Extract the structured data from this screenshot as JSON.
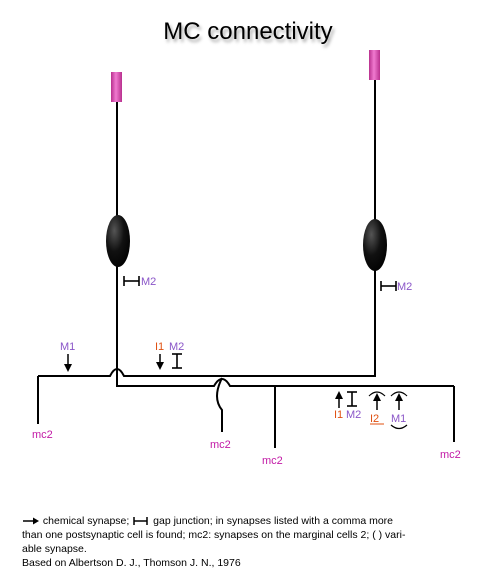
{
  "title": "MC connectivity",
  "labels": {
    "m2_left_soma": "M2",
    "m2_right_soma": "M2",
    "m1_left": "M1",
    "i1_top": "I1",
    "m2_top": "M2",
    "i1_bottom": "I1",
    "m2_bottom": "M2",
    "i2_bottom": "I2",
    "m1_bottom": "M1",
    "mc2_a": "mc2",
    "mc2_b": "mc2",
    "mc2_c": "mc2",
    "mc2_d": "mc2"
  },
  "legend": {
    "line1": "chemical synapse;",
    "line1b": "gap junction; in synapses listed with a comma more",
    "line2": "than one postsynaptic cell is found; mc2: synapses on the marginal cells 2; ( ) vari-",
    "line3": "able synapse.",
    "line4": "Based on Albertson D. J., Thomson J. N., 1976"
  },
  "colors": {
    "purple": "#8a55c8",
    "magenta": "#c21aa6",
    "orange": "#e05010",
    "pink_terminal": "#e060b8"
  }
}
